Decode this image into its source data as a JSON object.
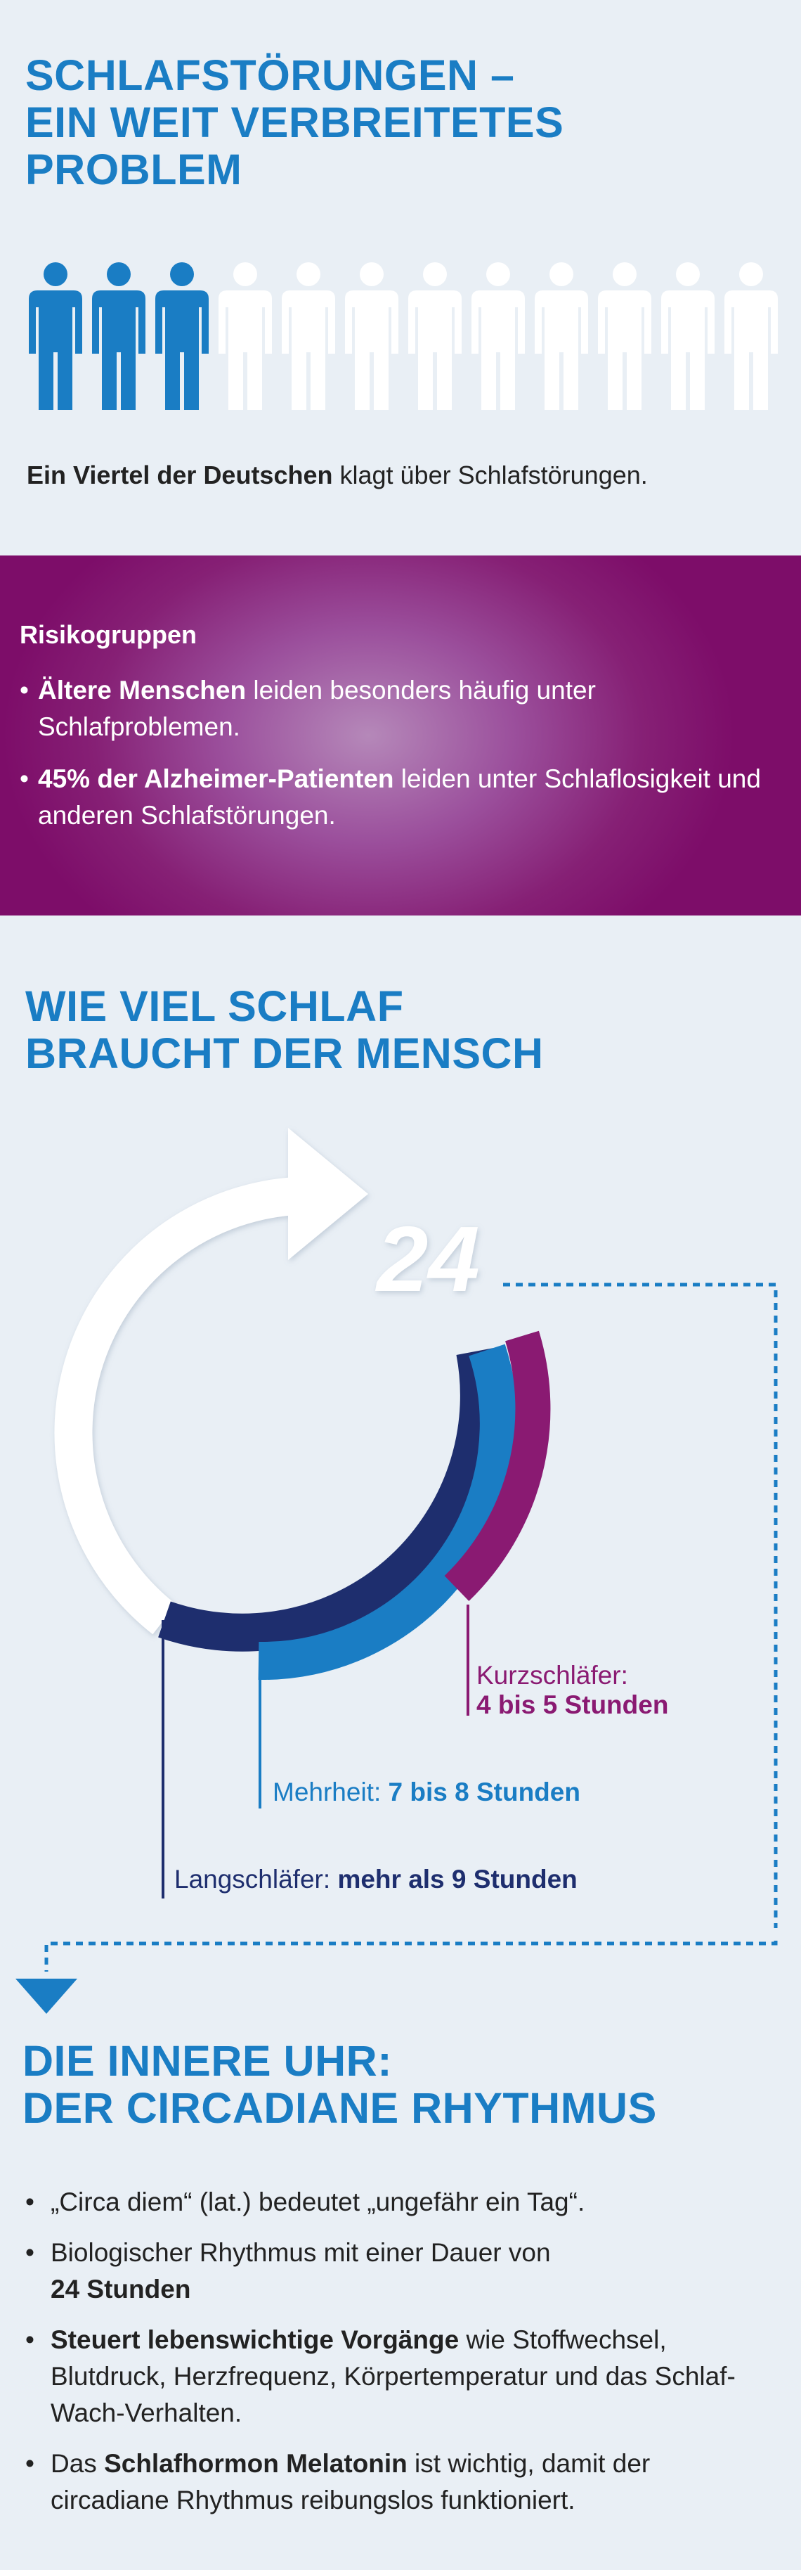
{
  "section1": {
    "title_lines": [
      "SCHLAFSTÖRUNGEN –",
      "EIN WEIT VERBREITETES",
      "PROBLEM"
    ],
    "people_total": 12,
    "people_highlighted": 3,
    "colors": {
      "highlight": "#1a7dc4",
      "other": "#ffffff"
    },
    "intro_bold": "Ein Viertel der Deutschen",
    "intro_rest": " klagt über Schlafstörungen."
  },
  "section2": {
    "heading": "Risikogruppen",
    "items": [
      {
        "bold": "Ältere Menschen",
        "rest": " leiden besonders häufig unter Schlafproblemen."
      },
      {
        "bold": "45% der Alzheimer-Patienten",
        "rest": " leiden unter Schlaflosigkeit und anderen Schlafstörungen."
      }
    ]
  },
  "section3": {
    "title_lines": [
      "WIE VIEL SCHLAF",
      "BRAUCHT DER MENSCH"
    ],
    "hours_label": "24",
    "kurz_label": "Kurzschläfer:",
    "kurz_value": "4 bis 5 Stunden",
    "mehrheit_label": "Mehrheit: ",
    "mehrheit_value": "7 bis 8 Stunden",
    "lang_label": "Langschläfer: ",
    "lang_value": "mehr als 9 Stunden",
    "colors": {
      "kurz": "#8a1a72",
      "mehrheit": "#1a7dc4",
      "lang": "#1e2e6e"
    }
  },
  "section4": {
    "title_lines": [
      "DIE INNERE UHR:",
      "DER CIRCADIANE RHYTHMUS"
    ],
    "items": [
      {
        "pre": "„Circa diem“ (lat.) bedeutet „ungefähr ein Tag“.",
        "bold": "",
        "post": ""
      },
      {
        "pre": "Biologischer Rhythmus mit einer Dauer von ",
        "bold": "24 Stunden",
        "post": ""
      },
      {
        "pre": "",
        "bold": "Steuert lebenswichtige Vorgänge",
        "post": " wie Stoffwechsel, Blutdruck, Herzfrequenz, Körpertemperatur und das Schlaf-Wach-Verhalten."
      },
      {
        "pre": "Das ",
        "bold": "Schlafhormon Melatonin",
        "post": " ist wichtig, damit der circadiane Rhythmus reibungslos funktioniert."
      }
    ]
  }
}
